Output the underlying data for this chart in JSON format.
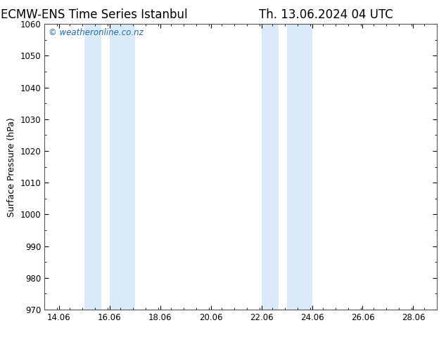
{
  "title_left": "ECMW-ENS Time Series Istanbul",
  "title_right": "Th. 13.06.2024 04 UTC",
  "ylabel": "Surface Pressure (hPa)",
  "ylim": [
    970,
    1060
  ],
  "yticks": [
    970,
    980,
    990,
    1000,
    1010,
    1020,
    1030,
    1040,
    1050,
    1060
  ],
  "xlim_start": 13.5,
  "xlim_end": 29.0,
  "xtick_labels": [
    "14.06",
    "16.06",
    "18.06",
    "20.06",
    "22.06",
    "24.06",
    "26.06",
    "28.06"
  ],
  "xtick_positions": [
    14.06,
    16.06,
    18.06,
    20.06,
    22.06,
    24.06,
    26.06,
    28.06
  ],
  "shaded_bands": [
    {
      "x_start": 15.06,
      "x_end": 15.73
    },
    {
      "x_start": 16.06,
      "x_end": 17.06
    },
    {
      "x_start": 22.06,
      "x_end": 22.73
    },
    {
      "x_start": 23.06,
      "x_end": 24.06
    }
  ],
  "shade_color": "#daeaf8",
  "background_color": "#ffffff",
  "plot_bg_color": "#ffffff",
  "watermark_text": "© weatheronline.co.nz",
  "watermark_color": "#1a6bb5",
  "watermark_fontsize": 8.5,
  "title_fontsize": 12,
  "axis_label_fontsize": 9,
  "tick_fontsize": 8.5
}
